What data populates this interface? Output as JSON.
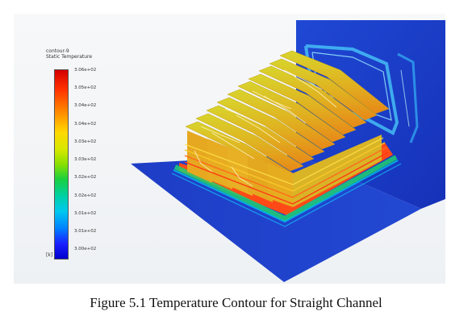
{
  "legend": {
    "title_line1": "contour-9",
    "title_line2": "Static Temperature",
    "ticks": [
      "3.06e+02",
      "3.05e+02",
      "3.04e+02",
      "3.04e+02",
      "3.03e+02",
      "3.03e+02",
      "3.02e+02",
      "3.02e+02",
      "3.01e+02",
      "3.01e+02",
      "3.00e+02"
    ],
    "unit": "[k]"
  },
  "caption": "Figure 5.1 Temperature Contour for Straight Channel",
  "colors": {
    "background": "#f3f5f7",
    "base_plate": "#1c3ac8",
    "fin_top": "#d6cf2a",
    "fin_side": "#e5a21c",
    "hot_edge": "#ff3c14",
    "cool_edge": "#1fd85a"
  }
}
